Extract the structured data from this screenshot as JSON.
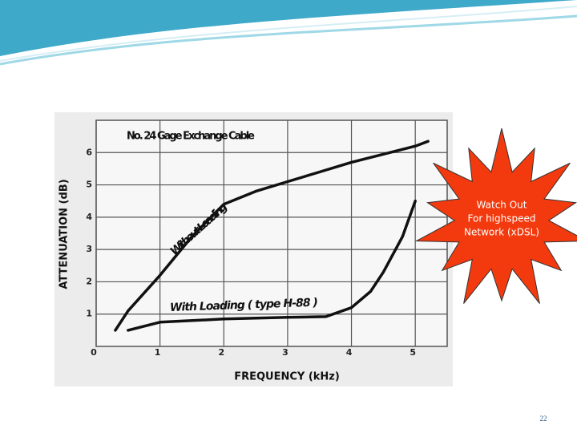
{
  "chart_data": {
    "type": "line",
    "title": "No. 24 Gage Exchange Cable",
    "x_label": "FREQUENCY (kHz)",
    "y_label": "ATTENUATION (dB)",
    "xlim": [
      0,
      5.5
    ],
    "ylim": [
      0,
      7
    ],
    "xticks": [
      0,
      1,
      2,
      3,
      4,
      5
    ],
    "yticks": [
      1,
      2,
      3,
      4,
      5,
      6
    ],
    "grid": true,
    "series": [
      {
        "name": "Without Loading",
        "color": "#111111",
        "x": [
          0.3,
          0.5,
          1,
          1.5,
          2,
          2.5,
          3,
          3.5,
          4,
          4.5,
          5,
          5.2
        ],
        "values": [
          0.5,
          1.1,
          2.2,
          3.4,
          4.4,
          4.8,
          5.1,
          5.4,
          5.7,
          5.95,
          6.2,
          6.35
        ]
      },
      {
        "name": "With Loading ( type H-88 )",
        "color": "#111111",
        "x": [
          0.5,
          1,
          2,
          3,
          3.6,
          4,
          4.3,
          4.5,
          4.8,
          5
        ],
        "values": [
          0.5,
          0.75,
          0.85,
          0.9,
          0.92,
          1.2,
          1.7,
          2.3,
          3.4,
          4.5
        ]
      }
    ]
  },
  "callout": [
    "Watch Out",
    "For highspeed",
    "Network (xDSL)"
  ],
  "page_number": "22"
}
